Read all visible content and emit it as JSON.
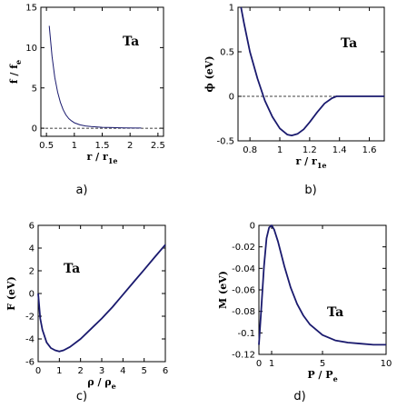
{
  "chart_data": [
    {
      "type": "line",
      "panel_label": "a)",
      "annotation": "Ta",
      "xlabel": "r / r",
      "xlabel_sub": "1e",
      "ylabel": "f / f",
      "ylabel_sub": "e",
      "xlim": [
        0.4,
        2.6
      ],
      "ylim": [
        -1,
        15
      ],
      "xticks": [
        0.5,
        1,
        1.5,
        2,
        2.5
      ],
      "xtick_labels": [
        "0.5",
        "1",
        "1.5",
        "2",
        "2.5"
      ],
      "yticks": [
        0,
        5,
        10,
        15
      ],
      "ytick_labels": [
        "0",
        "5",
        "10",
        "15"
      ],
      "reference_line": 0,
      "series": [
        {
          "x": [
            0.55,
            0.6,
            0.65,
            0.7,
            0.75,
            0.8,
            0.85,
            0.9,
            0.95,
            1.0,
            1.1,
            1.2,
            1.3,
            1.5,
            1.7,
            1.9,
            2.1,
            2.2
          ],
          "y": [
            12.7,
            8.9,
            6.3,
            4.5,
            3.2,
            2.3,
            1.65,
            1.2,
            0.9,
            0.68,
            0.42,
            0.28,
            0.2,
            0.12,
            0.08,
            0.05,
            0.03,
            0.02
          ]
        }
      ]
    },
    {
      "type": "line",
      "panel_label": "b)",
      "annotation": "Ta",
      "xlabel": "r / r",
      "xlabel_sub": "1e",
      "ylabel": "ϕ (eV)",
      "xlim": [
        0.72,
        1.7
      ],
      "ylim": [
        -0.5,
        1
      ],
      "xticks": [
        0.8,
        1,
        1.2,
        1.4,
        1.6
      ],
      "xtick_labels": [
        "0.8",
        "1",
        "1.2",
        "1.4",
        "1.6"
      ],
      "yticks": [
        -0.5,
        0,
        0.5,
        1
      ],
      "ytick_labels": [
        "-0.5",
        "0",
        "0.5",
        "1"
      ],
      "reference_line": 0,
      "series": [
        {
          "x": [
            0.74,
            0.76,
            0.8,
            0.85,
            0.9,
            0.95,
            1.0,
            1.05,
            1.08,
            1.12,
            1.16,
            1.2,
            1.25,
            1.3,
            1.35,
            1.38,
            1.4,
            1.5,
            1.6,
            1.7
          ],
          "y": [
            1.0,
            0.82,
            0.5,
            0.2,
            -0.05,
            -0.23,
            -0.36,
            -0.43,
            -0.44,
            -0.42,
            -0.37,
            -0.29,
            -0.18,
            -0.08,
            -0.02,
            0.0,
            0.0,
            0.0,
            0.0,
            0.0
          ]
        }
      ]
    },
    {
      "type": "line",
      "panel_label": "c)",
      "annotation": "Ta",
      "xlabel": "ρ / ρ",
      "xlabel_sub": "e",
      "ylabel": "F (eV)",
      "xlim": [
        0,
        6
      ],
      "ylim": [
        -6,
        6
      ],
      "xticks": [
        0,
        1,
        2,
        3,
        4,
        5,
        6
      ],
      "xtick_labels": [
        "0",
        "1",
        "2",
        "3",
        "4",
        "5",
        "6"
      ],
      "yticks": [
        -6,
        -4,
        -2,
        0,
        2,
        4,
        6
      ],
      "ytick_labels": [
        "-6",
        "-4",
        "-2",
        "0",
        "2",
        "4",
        "6"
      ],
      "series": [
        {
          "x": [
            0.0,
            0.1,
            0.2,
            0.4,
            0.6,
            0.8,
            1.0,
            1.2,
            1.5,
            2.0,
            2.5,
            3.0,
            3.5,
            4.0,
            4.5,
            5.0,
            5.5,
            6.0
          ],
          "y": [
            0.0,
            -2.2,
            -3.2,
            -4.3,
            -4.8,
            -5.0,
            -5.1,
            -5.0,
            -4.7,
            -4.0,
            -3.1,
            -2.2,
            -1.2,
            -0.1,
            1.0,
            2.1,
            3.2,
            4.3
          ]
        }
      ]
    },
    {
      "type": "line",
      "panel_label": "d)",
      "annotation": "Ta",
      "xlabel": "P / P",
      "xlabel_sub": "e",
      "ylabel": "M (eV)",
      "xlim": [
        0,
        10
      ],
      "ylim": [
        -0.12,
        0
      ],
      "xticks": [
        0,
        1,
        5,
        10
      ],
      "xtick_labels": [
        "0",
        "1",
        "5",
        "10"
      ],
      "yticks": [
        0,
        -0.02,
        -0.04,
        -0.06,
        -0.08,
        -0.1,
        -0.12
      ],
      "ytick_labels": [
        "0",
        "-0.02",
        "-0.04",
        "-0.06",
        "-0.08",
        "-0.1",
        "-0.12"
      ],
      "series": [
        {
          "x": [
            0.0,
            0.2,
            0.4,
            0.6,
            0.8,
            1.0,
            1.2,
            1.5,
            2.0,
            2.5,
            3.0,
            3.5,
            4.0,
            5.0,
            6.0,
            7.0,
            8.0,
            9.0,
            10.0
          ],
          "y": [
            -0.111,
            -0.075,
            -0.038,
            -0.012,
            -0.002,
            0.0,
            -0.004,
            -0.015,
            -0.038,
            -0.058,
            -0.073,
            -0.084,
            -0.092,
            -0.102,
            -0.107,
            -0.109,
            -0.11,
            -0.111,
            -0.111
          ]
        }
      ]
    }
  ]
}
